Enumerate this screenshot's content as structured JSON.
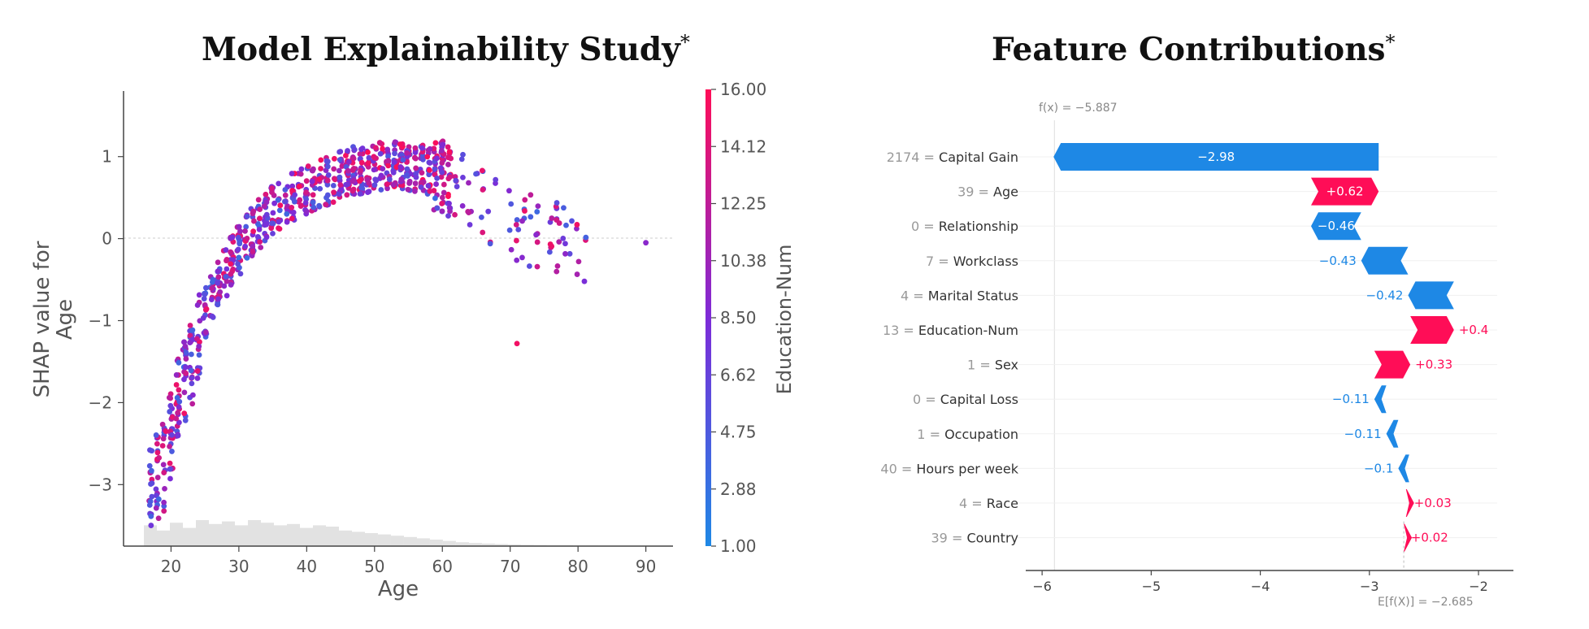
{
  "left_title": "Model Explainability Study",
  "right_title": "Feature Contributions",
  "title_mark": "*",
  "colors": {
    "pos": "#ff0d57",
    "neg": "#1e88e5",
    "hist": "#e2e2e2"
  },
  "chart_data": [
    {
      "type": "scatter",
      "title": "Model Explainability Study",
      "xlabel": "Age",
      "ylabel": "SHAP value for\nAge",
      "xlim": [
        13,
        94
      ],
      "ylim": [
        -3.75,
        1.8
      ],
      "xticks": [
        20,
        30,
        40,
        50,
        60,
        70,
        80,
        90
      ],
      "yticks": [
        -3,
        -2,
        -1,
        0,
        1
      ],
      "colorbar": {
        "label": "Education-Num",
        "min": 1.0,
        "max": 16.0,
        "ticks": [
          "1.00",
          "2.88",
          "4.75",
          "6.62",
          "8.50",
          "10.38",
          "12.25",
          "14.12",
          "16.00"
        ]
      },
      "grid": false,
      "trend": [
        [
          17,
          -3.0
        ],
        [
          19,
          -2.8
        ],
        [
          21,
          -2.0
        ],
        [
          23,
          -1.5
        ],
        [
          25,
          -0.9
        ],
        [
          28,
          -0.4
        ],
        [
          31,
          0.0
        ],
        [
          35,
          0.35
        ],
        [
          40,
          0.6
        ],
        [
          45,
          0.78
        ],
        [
          50,
          0.88
        ],
        [
          55,
          0.88
        ],
        [
          60,
          0.78
        ],
        [
          65,
          0.5
        ],
        [
          70,
          0.2
        ],
        [
          75,
          0.05
        ],
        [
          80,
          -0.1
        ]
      ],
      "histogram": [
        0.8,
        0.6,
        0.9,
        0.7,
        1.0,
        0.85,
        0.95,
        0.8,
        1.0,
        0.9,
        0.8,
        0.85,
        0.7,
        0.8,
        0.75,
        0.6,
        0.55,
        0.5,
        0.45,
        0.4,
        0.35,
        0.3,
        0.25,
        0.2,
        0.15,
        0.12,
        0.1,
        0.08,
        0.06,
        0.05,
        0.04,
        0.03,
        0.03,
        0.02,
        0.02,
        0.01
      ]
    },
    {
      "type": "bar",
      "title": "Feature Contributions",
      "fx_label": "f(x) = −5.887",
      "fx": -5.887,
      "base_label": "E[f(X)] = −2.685",
      "base": -2.685,
      "xlim": [
        -6.15,
        -1.68
      ],
      "xticks": [
        "−6",
        "−5",
        "−4",
        "−3",
        "−2"
      ],
      "xtick_values": [
        -6,
        -5,
        -4,
        -3,
        -2
      ],
      "categories": [
        "2174 = Capital Gain",
        "39 = Age",
        "0 = Relationship",
        "7 = Workclass",
        "4 = Marital Status",
        "13 = Education-Num",
        "1 = Sex",
        "0 = Capital Loss",
        "1 = Occupation",
        "40 = Hours per week",
        "4 = Race",
        "39 = Country"
      ],
      "values": [
        -2.98,
        0.62,
        -0.46,
        -0.43,
        -0.42,
        0.4,
        0.33,
        -0.11,
        -0.11,
        -0.1,
        0.03,
        0.02
      ],
      "value_labels": [
        "−2.98",
        "+0.62",
        "−0.46",
        "−0.43",
        "−0.42",
        "+0.4",
        "+0.33",
        "−0.11",
        "−0.11",
        "−0.1",
        "+0.03",
        "+0.02"
      ]
    }
  ]
}
